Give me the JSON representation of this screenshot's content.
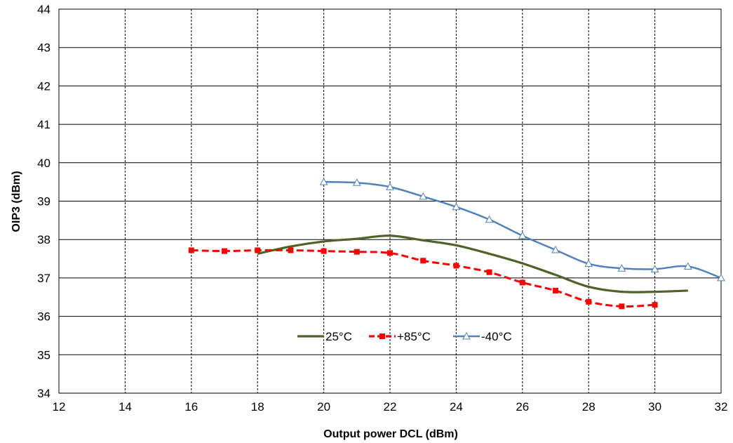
{
  "chart_data": {
    "type": "line",
    "xlabel": "Output power DCL (dBm)",
    "ylabel": "OIP3  (dBm)",
    "xlim": [
      12,
      32
    ],
    "ylim": [
      34,
      44
    ],
    "x_ticks": [
      "12",
      "14",
      "16",
      "18",
      "20",
      "22",
      "24",
      "26",
      "28",
      "30",
      "32"
    ],
    "y_ticks": [
      "34",
      "35",
      "36",
      "37",
      "38",
      "39",
      "40",
      "41",
      "42",
      "43",
      "44"
    ],
    "grid": {
      "x": "dashed-vertical",
      "y": "solid-horizontal"
    },
    "legend_position": "bottom-center-inside",
    "series": [
      {
        "name": "25°C",
        "color": "#4f6228",
        "marker": "none",
        "dash": "solid",
        "x": [
          18,
          19,
          20,
          21,
          22,
          23,
          24,
          25,
          26,
          27,
          28,
          29,
          30,
          31
        ],
        "y": [
          37.63,
          37.82,
          37.95,
          38.02,
          38.1,
          37.98,
          37.85,
          37.63,
          37.38,
          37.08,
          36.77,
          36.64,
          36.64,
          36.67
        ]
      },
      {
        "name": "+85°C",
        "color": "#ff0000",
        "marker": "square",
        "dash": "dashed",
        "x": [
          16,
          17,
          18,
          19,
          20,
          21,
          22,
          23,
          24,
          25,
          26,
          27,
          28,
          29,
          30
        ],
        "y": [
          37.72,
          37.7,
          37.72,
          37.72,
          37.7,
          37.68,
          37.65,
          37.45,
          37.32,
          37.15,
          36.88,
          36.67,
          36.38,
          36.26,
          36.3
        ]
      },
      {
        "name": "-40°C",
        "color": "#4f81bd",
        "marker": "triangle",
        "dash": "solid",
        "x": [
          20,
          21,
          22,
          23,
          24,
          25,
          26,
          27,
          28,
          29,
          30,
          31,
          32
        ],
        "y": [
          39.5,
          39.48,
          39.37,
          39.12,
          38.85,
          38.52,
          38.1,
          37.73,
          37.37,
          37.25,
          37.23,
          37.3,
          37.0
        ]
      }
    ]
  }
}
